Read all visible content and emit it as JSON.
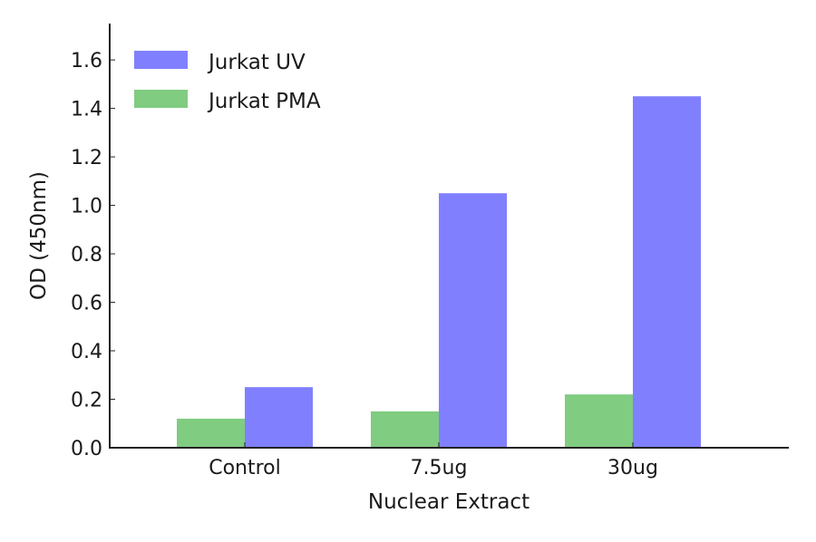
{
  "chart_data": {
    "type": "bar",
    "title": "",
    "xlabel": "Nuclear Extract",
    "ylabel": "OD (450nm)",
    "categories": [
      "Control",
      "7.5ug",
      "30ug"
    ],
    "series": [
      {
        "name": "Jurkat PMA",
        "color": "#80cc80",
        "values": [
          0.12,
          0.15,
          0.22
        ]
      },
      {
        "name": "Jurkat UV",
        "color": "#8080ff",
        "values": [
          0.25,
          1.05,
          1.45
        ]
      }
    ],
    "ylim": [
      0,
      1.75
    ],
    "yticks": [
      0.0,
      0.2,
      0.4,
      0.6,
      0.8,
      1.0,
      1.2,
      1.4,
      1.6
    ],
    "ytick_labels": [
      "0.0",
      "0.2",
      "0.4",
      "0.6",
      "0.8",
      "1.0",
      "1.2",
      "1.4",
      "1.6"
    ],
    "grid": false,
    "legend": {
      "position": "upper left",
      "entries": [
        {
          "label": "Jurkat UV",
          "color": "#8080ff"
        },
        {
          "label": "Jurkat PMA",
          "color": "#80cc80"
        }
      ]
    }
  }
}
